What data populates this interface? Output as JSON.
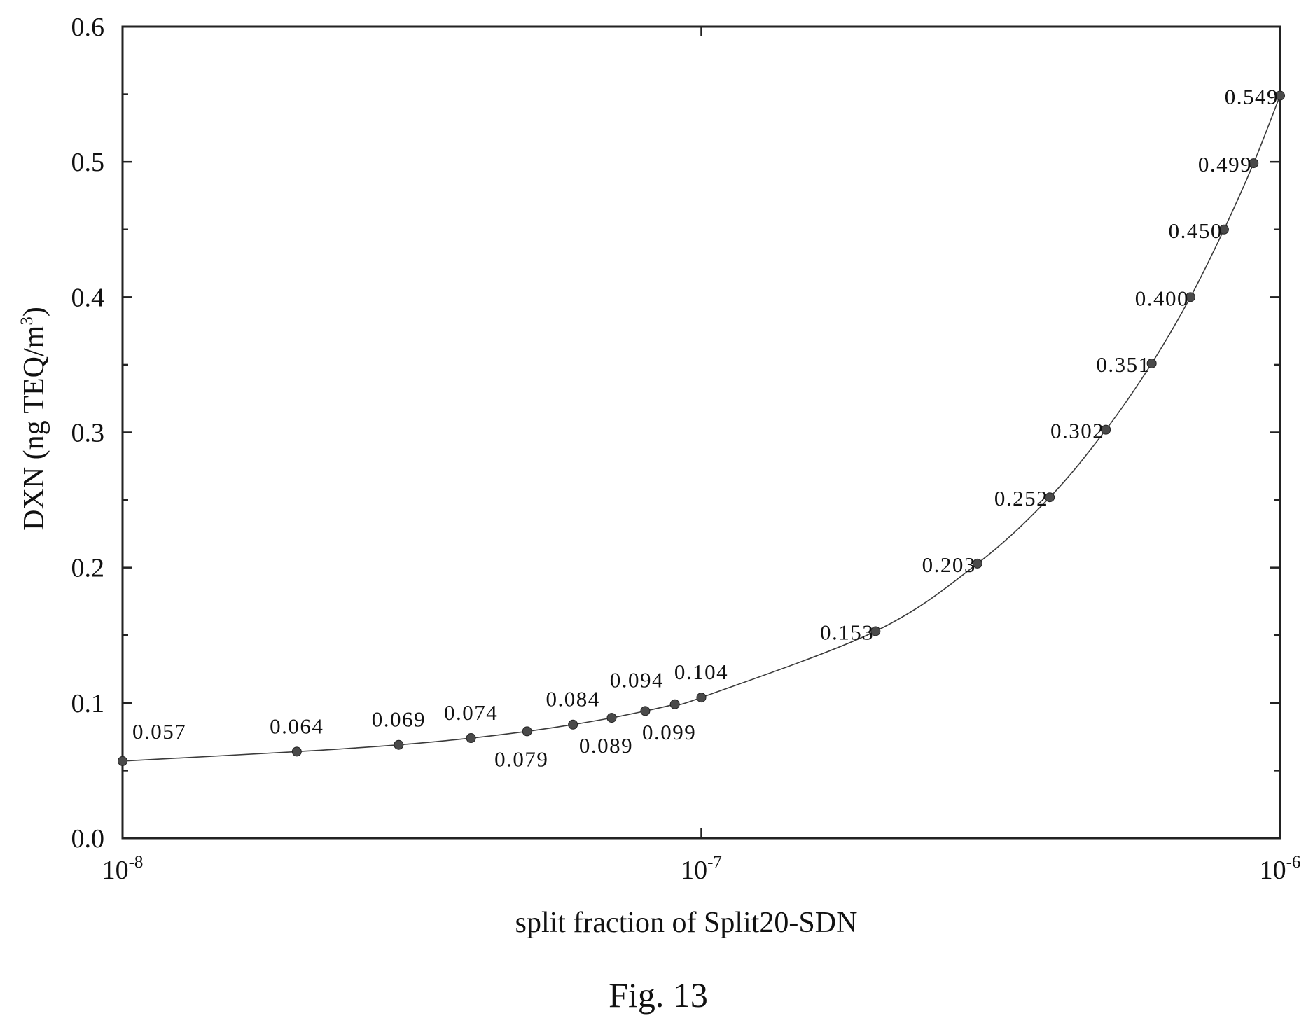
{
  "chart_data": {
    "type": "scatter",
    "xlabel": "split fraction of  Split20-SDN",
    "ylabel": "DXN  (ng TEQ/m",
    "ylabel_sup": "3",
    "ylabel_close": ")",
    "xscale": "log",
    "xlim": [
      1e-08,
      1e-06
    ],
    "ylim": [
      0.0,
      0.6
    ],
    "x_ticks": [
      {
        "base": "10",
        "exp": "-8",
        "value": 1e-08
      },
      {
        "base": "10",
        "exp": "-7",
        "value": 1e-07
      },
      {
        "base": "10",
        "exp": "-6",
        "value": 1e-06
      }
    ],
    "y_ticks": [
      "0.0",
      "0.1",
      "0.2",
      "0.3",
      "0.4",
      "0.5",
      "0.6"
    ],
    "grid": false,
    "legend": "none",
    "marker_color": "#4a4a4a",
    "line_color": "#3a3a3a",
    "points": [
      {
        "x": 1e-08,
        "y": 0.057,
        "label": "0.057",
        "pos": "ur"
      },
      {
        "x": 2e-08,
        "y": 0.064,
        "label": "0.064",
        "pos": "u"
      },
      {
        "x": 3e-08,
        "y": 0.069,
        "label": "0.069",
        "pos": "u"
      },
      {
        "x": 4e-08,
        "y": 0.074,
        "label": "0.074",
        "pos": "u"
      },
      {
        "x": 5e-08,
        "y": 0.079,
        "label": "0.079",
        "pos": "b"
      },
      {
        "x": 6e-08,
        "y": 0.084,
        "label": "0.084",
        "pos": "u"
      },
      {
        "x": 7e-08,
        "y": 0.089,
        "label": "0.089",
        "pos": "b"
      },
      {
        "x": 8e-08,
        "y": 0.094,
        "label": "0.094",
        "pos": "ul"
      },
      {
        "x": 9e-08,
        "y": 0.099,
        "label": "0.099",
        "pos": "b"
      },
      {
        "x": 1e-07,
        "y": 0.104,
        "label": "0.104",
        "pos": "u"
      },
      {
        "x": 2e-07,
        "y": 0.153,
        "label": "0.153",
        "pos": "l"
      },
      {
        "x": 3e-07,
        "y": 0.203,
        "label": "0.203",
        "pos": "l"
      },
      {
        "x": 4e-07,
        "y": 0.252,
        "label": "0.252",
        "pos": "l"
      },
      {
        "x": 5e-07,
        "y": 0.302,
        "label": "0.302",
        "pos": "l"
      },
      {
        "x": 6e-07,
        "y": 0.351,
        "label": "0.351",
        "pos": "l"
      },
      {
        "x": 7e-07,
        "y": 0.4,
        "label": "0.400",
        "pos": "l"
      },
      {
        "x": 8e-07,
        "y": 0.45,
        "label": "0.450",
        "pos": "l"
      },
      {
        "x": 9e-07,
        "y": 0.499,
        "label": "0.499",
        "pos": "l"
      },
      {
        "x": 1e-06,
        "y": 0.549,
        "label": "0.549",
        "pos": "l"
      }
    ]
  },
  "caption": "Fig. 13"
}
